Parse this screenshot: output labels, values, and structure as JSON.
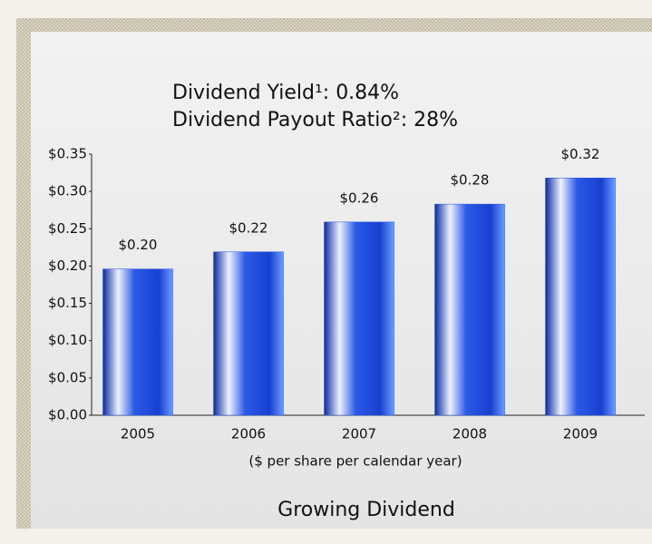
{
  "chart_data": {
    "type": "bar",
    "title_lines": [
      "Dividend Yield¹:  0.84%",
      "Dividend Payout Ratio²:  28%"
    ],
    "x_label": "($ per share per calendar year)",
    "caption": "Growing Dividend",
    "categories": [
      "2005",
      "2006",
      "2007",
      "2008",
      "2009"
    ],
    "values": [
      0.196,
      0.219,
      0.259,
      0.283,
      0.318
    ],
    "value_labels": [
      "$0.20",
      "$0.22",
      "$0.26",
      "$0.28",
      "$0.32"
    ],
    "color": "#1f4fd8",
    "ylim": [
      0,
      0.35
    ],
    "yticks": [
      {
        "value": 0,
        "label": "$0.00"
      },
      {
        "value": 0.05,
        "label": "$0.05"
      },
      {
        "value": 0.1,
        "label": "$0.10"
      },
      {
        "value": 0.15,
        "label": "$0.15"
      },
      {
        "value": 0.2,
        "label": "$0.20"
      },
      {
        "value": 0.25,
        "label": "$0.25"
      },
      {
        "value": 0.3,
        "label": "$0.30"
      },
      {
        "value": 0.35,
        "label": "$0.35"
      }
    ],
    "grid": false
  }
}
